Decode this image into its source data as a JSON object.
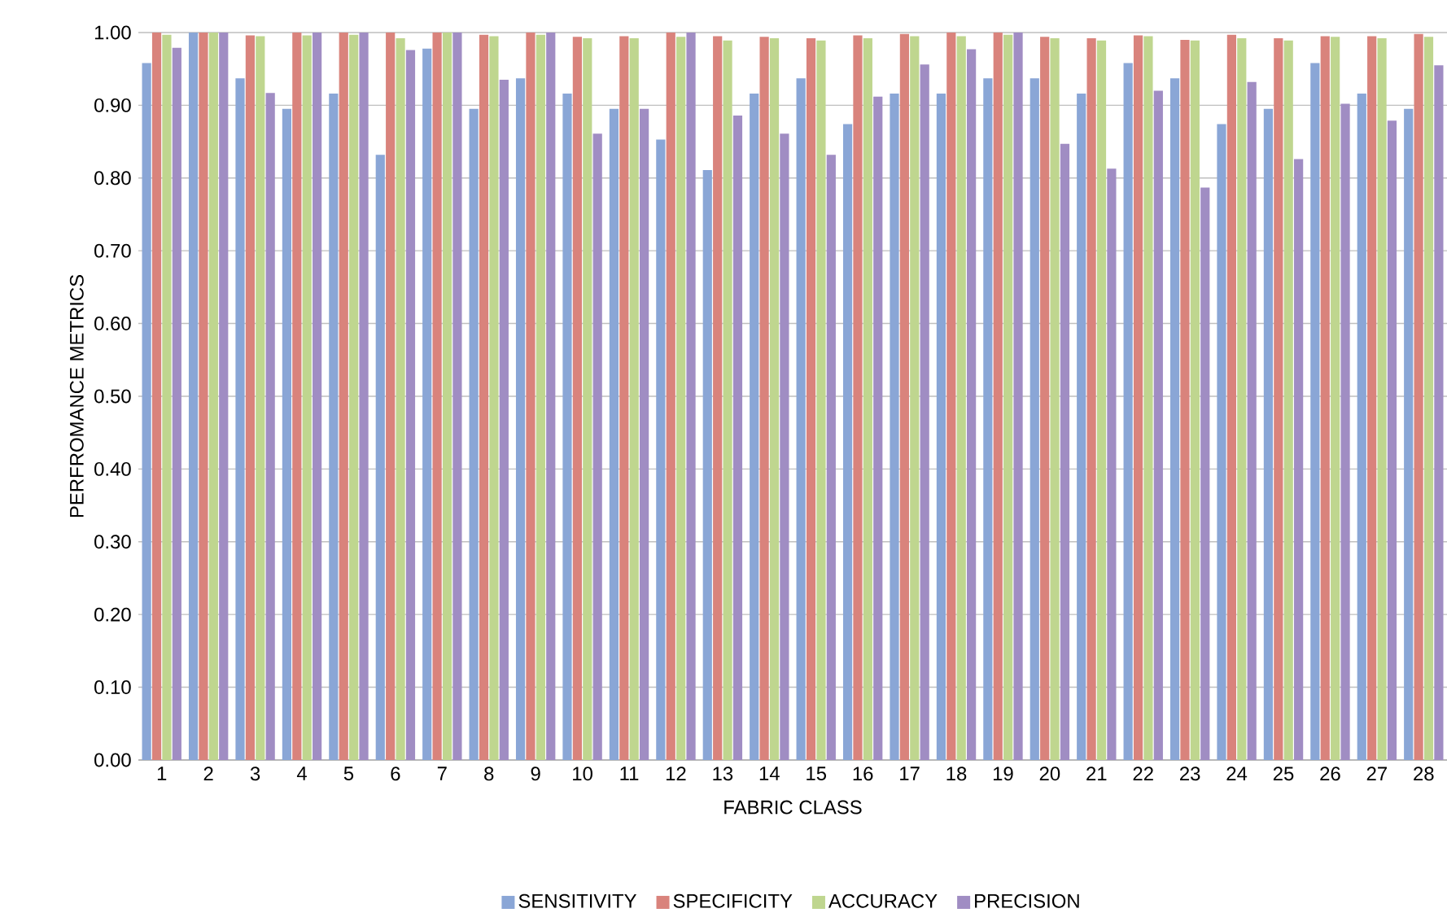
{
  "chart_data": {
    "type": "bar",
    "xlabel": "FABRIC CLASS",
    "ylabel": "PERFROMANCE METRICS",
    "categories": [
      "1",
      "2",
      "3",
      "4",
      "5",
      "6",
      "7",
      "8",
      "9",
      "10",
      "11",
      "12",
      "13",
      "14",
      "15",
      "16",
      "17",
      "18",
      "19",
      "20",
      "21",
      "22",
      "23",
      "24",
      "25",
      "26",
      "27",
      "28"
    ],
    "series": [
      {
        "name": "SENSITIVITY",
        "color": "#8aa6d6",
        "values": [
          0.958,
          1.0,
          0.937,
          0.895,
          0.916,
          0.832,
          0.978,
          0.895,
          0.937,
          0.916,
          0.895,
          0.853,
          0.811,
          0.916,
          0.937,
          0.874,
          0.916,
          0.916,
          0.937,
          0.937,
          0.916,
          0.958,
          0.937,
          0.874,
          0.895,
          0.958,
          0.916,
          0.895
        ]
      },
      {
        "name": "SPECIFICITY",
        "color": "#d9837c",
        "values": [
          1.0,
          1.0,
          0.996,
          1.0,
          1.0,
          1.0,
          1.0,
          0.997,
          1.0,
          0.994,
          0.995,
          1.0,
          0.995,
          0.994,
          0.992,
          0.996,
          0.998,
          1.0,
          1.0,
          0.994,
          0.992,
          0.996,
          0.99,
          0.997,
          0.992,
          0.995,
          0.995,
          0.998
        ]
      },
      {
        "name": "ACCURACY",
        "color": "#bfd68f",
        "values": [
          0.997,
          1.0,
          0.995,
          0.996,
          0.997,
          0.992,
          1.0,
          0.995,
          0.997,
          0.992,
          0.992,
          0.994,
          0.989,
          0.992,
          0.989,
          0.992,
          0.995,
          0.995,
          0.997,
          0.992,
          0.989,
          0.995,
          0.989,
          0.992,
          0.989,
          0.994,
          0.992,
          0.994
        ]
      },
      {
        "name": "PRECISION",
        "color": "#a08dc3",
        "values": [
          0.979,
          1.0,
          0.917,
          1.0,
          1.0,
          0.976,
          1.0,
          0.935,
          1.0,
          0.861,
          0.895,
          1.0,
          0.886,
          0.861,
          0.832,
          0.912,
          0.956,
          0.977,
          1.0,
          0.847,
          0.813,
          0.92,
          0.787,
          0.932,
          0.826,
          0.902,
          0.879,
          0.955
        ]
      }
    ],
    "ylim": [
      0,
      1
    ],
    "yticks": [
      {
        "value": 0,
        "label": "0.00"
      },
      {
        "value": 0.1,
        "label": "0.10"
      },
      {
        "value": 0.2,
        "label": "0.20"
      },
      {
        "value": 0.3,
        "label": "0.30"
      },
      {
        "value": 0.4,
        "label": "0.40"
      },
      {
        "value": 0.5,
        "label": "0.50"
      },
      {
        "value": 0.6,
        "label": "0.60"
      },
      {
        "value": 0.7,
        "label": "0.70"
      },
      {
        "value": 0.8,
        "label": "0.80"
      },
      {
        "value": 0.9,
        "label": "0.90"
      },
      {
        "value": 1,
        "label": "1.00"
      }
    ],
    "grid": "y",
    "legend": "bottom"
  }
}
